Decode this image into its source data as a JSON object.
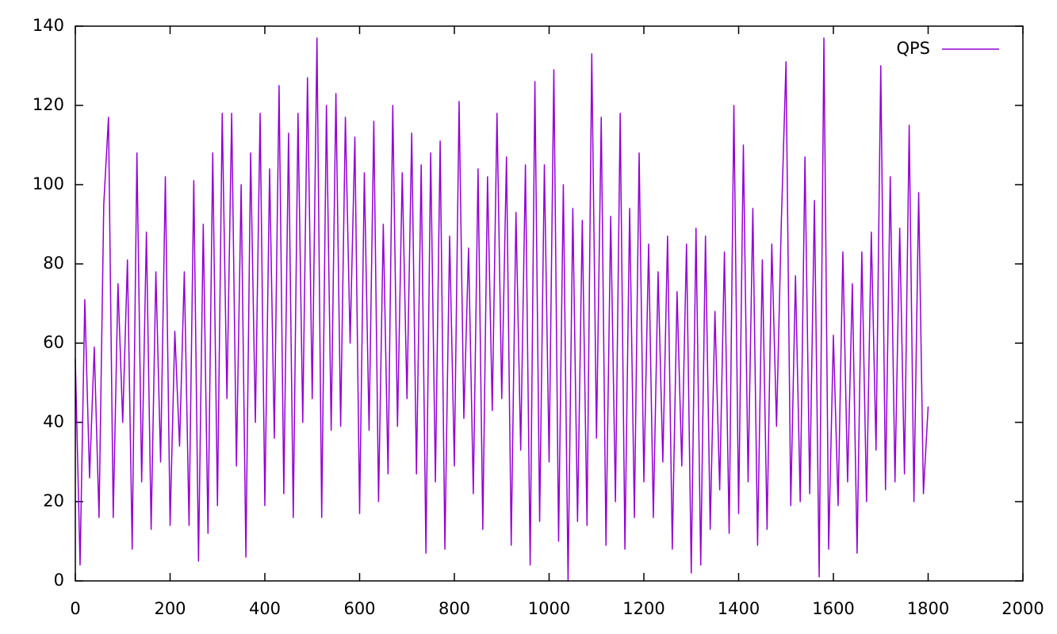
{
  "chart_data": {
    "type": "line",
    "x": [
      0,
      10,
      20,
      30,
      40,
      50,
      60,
      70,
      80,
      90,
      100,
      110,
      120,
      130,
      140,
      150,
      160,
      170,
      180,
      190,
      200,
      210,
      220,
      230,
      240,
      250,
      260,
      270,
      280,
      290,
      300,
      310,
      320,
      330,
      340,
      350,
      360,
      370,
      380,
      390,
      400,
      410,
      420,
      430,
      440,
      450,
      460,
      470,
      480,
      490,
      500,
      510,
      520,
      530,
      540,
      550,
      560,
      570,
      580,
      590,
      600,
      610,
      620,
      630,
      640,
      650,
      660,
      670,
      680,
      690,
      700,
      710,
      720,
      730,
      740,
      750,
      760,
      770,
      780,
      790,
      800,
      810,
      820,
      830,
      840,
      850,
      860,
      870,
      880,
      890,
      900,
      910,
      920,
      930,
      940,
      950,
      960,
      970,
      980,
      990,
      1000,
      1010,
      1020,
      1030,
      1040,
      1050,
      1060,
      1070,
      1080,
      1090,
      1100,
      1110,
      1120,
      1130,
      1140,
      1150,
      1160,
      1170,
      1180,
      1190,
      1200,
      1210,
      1220,
      1230,
      1240,
      1250,
      1260,
      1270,
      1280,
      1290,
      1300,
      1310,
      1320,
      1330,
      1340,
      1350,
      1360,
      1370,
      1380,
      1390,
      1400,
      1410,
      1420,
      1430,
      1440,
      1450,
      1460,
      1470,
      1480,
      1490,
      1500,
      1510,
      1520,
      1530,
      1540,
      1550,
      1560,
      1570,
      1580,
      1590,
      1600,
      1610,
      1620,
      1630,
      1640,
      1650,
      1660,
      1670,
      1680,
      1690,
      1700,
      1710,
      1720,
      1730,
      1740,
      1750,
      1760,
      1770,
      1780,
      1790,
      1800
    ],
    "series": [
      {
        "name": "QPS",
        "color": "#9400d3",
        "values": [
          56,
          4,
          71,
          26,
          59,
          16,
          95,
          117,
          16,
          75,
          40,
          81,
          8,
          108,
          25,
          88,
          13,
          78,
          30,
          102,
          14,
          63,
          34,
          78,
          14,
          101,
          5,
          90,
          12,
          108,
          19,
          118,
          46,
          118,
          29,
          100,
          6,
          108,
          40,
          118,
          19,
          104,
          36,
          125,
          22,
          113,
          16,
          118,
          40,
          127,
          46,
          137,
          16,
          120,
          38,
          123,
          39,
          117,
          60,
          112,
          17,
          103,
          38,
          116,
          20,
          90,
          27,
          120,
          39,
          103,
          46,
          113,
          27,
          105,
          7,
          108,
          25,
          111,
          8,
          87,
          29,
          121,
          41,
          84,
          22,
          104,
          13,
          102,
          43,
          118,
          46,
          107,
          9,
          93,
          33,
          105,
          4,
          126,
          15,
          105,
          30,
          129,
          10,
          100,
          0,
          94,
          15,
          91,
          14,
          133,
          36,
          117,
          9,
          92,
          20,
          118,
          8,
          94,
          16,
          108,
          25,
          85,
          16,
          78,
          30,
          87,
          8,
          73,
          29,
          85,
          2,
          89,
          4,
          87,
          13,
          68,
          23,
          83,
          12,
          120,
          17,
          110,
          25,
          94,
          9,
          81,
          13,
          85,
          39,
          90,
          131,
          19,
          77,
          20,
          107,
          22,
          96,
          1,
          137,
          8,
          62,
          19,
          83,
          25,
          75,
          7,
          83,
          20,
          88,
          33,
          130,
          23,
          102,
          25,
          89,
          27,
          115,
          20,
          98,
          22,
          44
        ]
      }
    ],
    "xlim": [
      0,
      2000
    ],
    "xticks": [
      0,
      200,
      400,
      600,
      800,
      1000,
      1200,
      1400,
      1600,
      1800,
      2000
    ],
    "ylim": [
      0,
      140
    ],
    "yticks": [
      0,
      20,
      40,
      60,
      80,
      100,
      120,
      140
    ],
    "legend": "top-right"
  }
}
